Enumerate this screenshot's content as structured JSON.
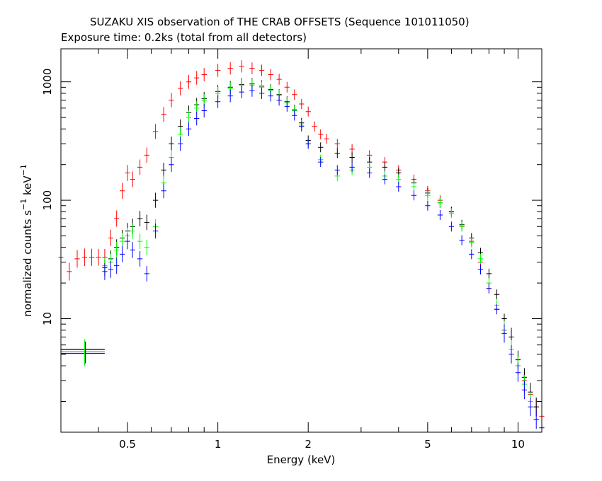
{
  "chart_data": {
    "type": "scatter",
    "title": "SUZAKU XIS observation of THE CRAB OFFSETS (Sequence 101011050)",
    "subtitle": "Exposure time: 0.2ks (total from all detectors)",
    "xlabel": "Energy (keV)",
    "ylabel": {
      "prefix": "normalized counts s",
      "exp1": "−1",
      "mid": " keV",
      "exp2": "−1"
    },
    "xscale": "log",
    "yscale": "log",
    "xlim": [
      0.3,
      12
    ],
    "ylim": [
      1.1,
      1900
    ],
    "x_ticks": [
      {
        "value": 0.5,
        "label": "0.5"
      },
      {
        "value": 1,
        "label": "1"
      },
      {
        "value": 2,
        "label": "2"
      },
      {
        "value": 5,
        "label": "5"
      },
      {
        "value": 10,
        "label": "10"
      }
    ],
    "y_ticks": [
      {
        "value": 10,
        "label": "10"
      },
      {
        "value": 100,
        "label": "100"
      },
      {
        "value": 1000,
        "label": "1000"
      }
    ],
    "series": [
      {
        "color": "#ff0000",
        "x": [
          0.3,
          0.32,
          0.34,
          0.36,
          0.38,
          0.4,
          0.42,
          0.44,
          0.46,
          0.48,
          0.5,
          0.52,
          0.55,
          0.58,
          0.62,
          0.66,
          0.7,
          0.75,
          0.8,
          0.85,
          0.9,
          1.0,
          1.1,
          1.2,
          1.3,
          1.4,
          1.5,
          1.6,
          1.7,
          1.8,
          1.9,
          2.0,
          2.1,
          2.2,
          2.3,
          2.5,
          2.8,
          3.2,
          3.6,
          4.0,
          4.5,
          5.0,
          5.5,
          6.0,
          6.5,
          7.0,
          7.5,
          8.0,
          8.5,
          9.0,
          9.5,
          10.0,
          10.5,
          11.0,
          11.5,
          12.0
        ],
        "y": [
          33,
          25,
          32,
          33,
          33,
          33,
          33,
          48,
          70,
          120,
          170,
          150,
          190,
          240,
          380,
          530,
          700,
          880,
          1000,
          1080,
          1150,
          1250,
          1300,
          1350,
          1300,
          1250,
          1150,
          1050,
          900,
          780,
          650,
          560,
          420,
          360,
          330,
          300,
          270,
          240,
          210,
          180,
          150,
          120,
          100,
          80,
          60,
          45,
          30,
          18,
          12,
          8,
          5.5,
          4.0,
          3.0,
          2.3,
          1.8,
          1.5
        ]
      },
      {
        "color": "#000000",
        "x": [
          0.42,
          0.44,
          0.46,
          0.48,
          0.5,
          0.52,
          0.55,
          0.58,
          0.62,
          0.66,
          0.7,
          0.75,
          0.8,
          0.85,
          0.9,
          1.0,
          1.1,
          1.2,
          1.3,
          1.4,
          1.5,
          1.6,
          1.7,
          1.8,
          1.9,
          2.0,
          2.2,
          2.5,
          2.8,
          3.2,
          3.6,
          4.0,
          4.5,
          5.0,
          5.5,
          6.0,
          6.5,
          7.0,
          7.5,
          8.0,
          8.5,
          9.0,
          9.5,
          10.0,
          10.5,
          11.0,
          11.5
        ],
        "y": [
          27,
          32,
          40,
          48,
          55,
          60,
          70,
          65,
          100,
          180,
          300,
          420,
          550,
          640,
          720,
          830,
          900,
          950,
          960,
          920,
          860,
          780,
          680,
          580,
          450,
          320,
          280,
          250,
          230,
          210,
          190,
          170,
          140,
          115,
          95,
          80,
          62,
          48,
          36,
          24,
          16,
          10,
          7,
          4.5,
          3.2,
          2.4,
          1.8
        ]
      },
      {
        "color": "#00ff00",
        "x": [
          0.42,
          0.44,
          0.46,
          0.48,
          0.5,
          0.52,
          0.55,
          0.58,
          0.62,
          0.66,
          0.7,
          0.75,
          0.8,
          0.85,
          0.9,
          1.0,
          1.1,
          1.2,
          1.3,
          1.4,
          1.5,
          1.6,
          1.7,
          1.8,
          1.9,
          2.0,
          2.2,
          2.5,
          2.8,
          3.2,
          3.6,
          4.0,
          4.5,
          5.0,
          5.5,
          6.0,
          6.5,
          7.0,
          7.5,
          8.0,
          8.5,
          9.0,
          9.5,
          10.0,
          10.5,
          11.0
        ],
        "y": [
          28,
          30,
          38,
          45,
          50,
          55,
          45,
          40,
          60,
          140,
          230,
          360,
          500,
          600,
          690,
          800,
          880,
          930,
          940,
          900,
          850,
          770,
          670,
          570,
          430,
          300,
          220,
          160,
          180,
          190,
          160,
          150,
          130,
          110,
          95,
          78,
          60,
          44,
          32,
          20,
          13,
          8,
          5.5,
          4.0,
          2.8,
          2.0
        ]
      },
      {
        "color": "#0000ff",
        "x": [
          0.42,
          0.44,
          0.46,
          0.48,
          0.5,
          0.52,
          0.55,
          0.58,
          0.62,
          0.66,
          0.7,
          0.75,
          0.8,
          0.85,
          0.9,
          1.0,
          1.1,
          1.2,
          1.3,
          1.4,
          1.5,
          1.6,
          1.7,
          1.8,
          1.9,
          2.0,
          2.2,
          2.5,
          2.8,
          3.2,
          3.6,
          4.0,
          4.5,
          5.0,
          5.5,
          6.0,
          6.5,
          7.0,
          7.5,
          8.0,
          8.5,
          9.0,
          9.5,
          10.0,
          10.5,
          11.0,
          11.5,
          12.0
        ],
        "y": [
          25,
          26,
          28,
          35,
          45,
          38,
          32,
          24,
          55,
          120,
          200,
          300,
          400,
          490,
          570,
          680,
          760,
          820,
          840,
          800,
          760,
          700,
          620,
          520,
          420,
          300,
          210,
          180,
          190,
          170,
          150,
          130,
          110,
          90,
          75,
          60,
          46,
          35,
          26,
          18,
          12,
          7.5,
          5.0,
          3.5,
          2.5,
          1.8,
          1.4,
          1.2
        ]
      }
    ],
    "legend_marks": [
      {
        "color": "#000000",
        "x": 0.36,
        "y": 5.5
      },
      {
        "color": "#00ff00",
        "x": 0.36,
        "y": 5.3
      },
      {
        "color": "#0000ff",
        "x": 0.36,
        "y": 5.1
      }
    ]
  }
}
